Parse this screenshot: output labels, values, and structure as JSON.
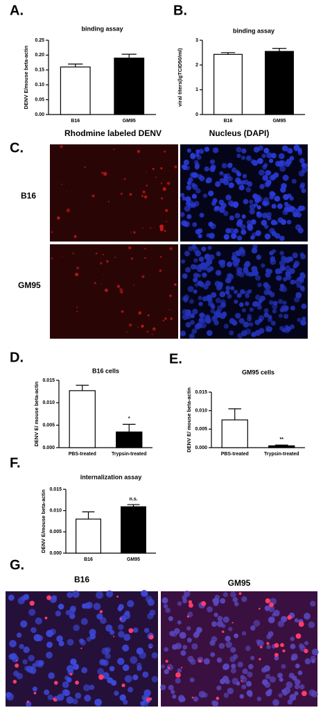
{
  "chart_data": [
    {
      "type": "bar",
      "title": "binding assay",
      "ylabel": "DENV E/mouse beta-actin",
      "categories": [
        "B16",
        "GM95"
      ],
      "values": [
        0.16,
        0.19
      ],
      "errors": [
        0.01,
        0.013
      ],
      "colors": [
        "#ffffff",
        "#000000"
      ],
      "ylim": [
        0,
        0.25
      ],
      "yticks": [
        {
          "value": 0,
          "label": "0.00"
        },
        {
          "value": 0.05,
          "label": "0.05"
        },
        {
          "value": 0.1,
          "label": "0.10"
        },
        {
          "value": 0.15,
          "label": "0.15"
        },
        {
          "value": 0.2,
          "label": "0.20"
        },
        {
          "value": 0.25,
          "label": "0.25"
        }
      ]
    },
    {
      "type": "bar",
      "title": "binding assay",
      "ylabel": "viral titers(lgTCID50/ml)",
      "categories": [
        "B16",
        "GM95"
      ],
      "values": [
        2.43,
        2.55
      ],
      "errors": [
        0.07,
        0.12
      ],
      "colors": [
        "#ffffff",
        "#000000"
      ],
      "ylim": [
        0,
        3
      ],
      "yticks": [
        0,
        1,
        2,
        3
      ]
    },
    {
      "type": "bar",
      "title": "B16 cells",
      "ylabel": "DENV E/ mouse beta-actin",
      "categories": [
        "PBS-treated",
        "Trypsin-treated"
      ],
      "values": [
        0.0127,
        0.0035
      ],
      "errors": [
        0.0012,
        0.0017
      ],
      "significance": [
        null,
        "*"
      ],
      "colors": [
        "#ffffff",
        "#000000"
      ],
      "ylim": [
        0,
        0.015
      ],
      "yticks": [
        {
          "value": 0,
          "label": "0.000"
        },
        {
          "value": 0.005,
          "label": "0.005"
        },
        {
          "value": 0.01,
          "label": "0.010"
        },
        {
          "value": 0.015,
          "label": "0.015"
        }
      ]
    },
    {
      "type": "bar",
      "title": "GM95 cells",
      "ylabel": "DENV E/ mouse beta-actin",
      "categories": [
        "PBS-treated",
        "Trypsin-treated"
      ],
      "values": [
        0.0075,
        0.0005
      ],
      "errors": [
        0.003,
        0.0002
      ],
      "significance": [
        null,
        "**"
      ],
      "colors": [
        "#ffffff",
        "#000000"
      ],
      "ylim": [
        0,
        0.015
      ],
      "yticks": [
        {
          "value": 0,
          "label": "0.000"
        },
        {
          "value": 0.005,
          "label": "0.005"
        },
        {
          "value": 0.01,
          "label": "0.010"
        },
        {
          "value": 0.015,
          "label": "0.015"
        }
      ]
    },
    {
      "type": "bar",
      "title": "internalization assay",
      "ylabel": "DENV E/mouse beta-actin",
      "categories": [
        "B16",
        "GM95"
      ],
      "values": [
        0.008,
        0.0109
      ],
      "errors": [
        0.0017,
        0.0005
      ],
      "significance": [
        null,
        "n.s."
      ],
      "colors": [
        "#ffffff",
        "#000000"
      ],
      "ylim": [
        0,
        0.015
      ],
      "yticks": [
        {
          "value": 0,
          "label": "0.000"
        },
        {
          "value": 0.005,
          "label": "0.005"
        },
        {
          "value": 0.01,
          "label": "0.010"
        },
        {
          "value": 0.015,
          "label": "0.015"
        }
      ]
    }
  ],
  "figure": {
    "panel_labels": [
      "A.",
      "B.",
      "C.",
      "D.",
      "E.",
      "F.",
      "G."
    ],
    "panel_c": {
      "columns": [
        "Rhodmine labeled DENV",
        "Nucleus (DAPI)"
      ],
      "rows": [
        "B16",
        "GM95"
      ]
    },
    "panel_g": {
      "columns": [
        "B16",
        "GM95"
      ]
    }
  }
}
